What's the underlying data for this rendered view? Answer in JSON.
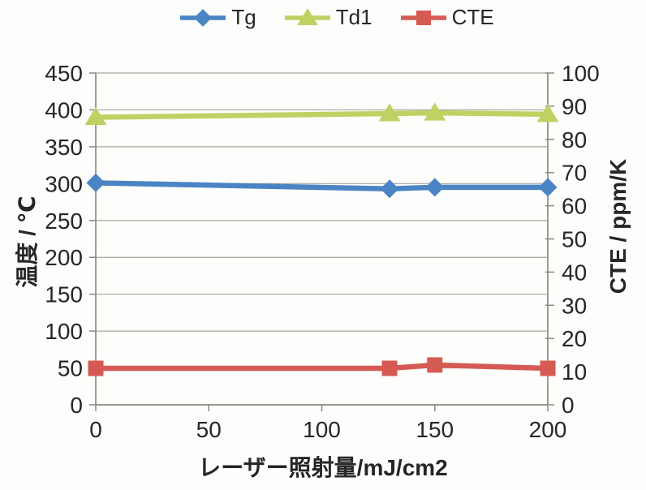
{
  "figure": {
    "background": "#fdfdfb"
  },
  "chart_data": {
    "type": "line",
    "title": "",
    "x": [
      0,
      130,
      150,
      200
    ],
    "series": [
      {
        "name": "Tg",
        "axis": "left",
        "color": "#4a84c4",
        "marker": "diamond",
        "values": [
          301,
          293,
          295,
          295
        ]
      },
      {
        "name": "Td1",
        "axis": "left",
        "color": "#bed264",
        "marker": "triangle",
        "values": [
          390,
          395,
          396,
          394
        ]
      },
      {
        "name": "CTE",
        "axis": "right",
        "color": "#d65a54",
        "marker": "square",
        "values": [
          11,
          11,
          12,
          11
        ]
      }
    ],
    "x_axis": {
      "label": "レーザー照射量/mJ/cm2",
      "min": 0,
      "max": 200,
      "tick_step": 50
    },
    "left_axis": {
      "label": "温度 / ℃",
      "min": 0,
      "max": 450,
      "tick_step": 50
    },
    "right_axis": {
      "label": "CTE / ppm/K",
      "min": 0,
      "max": 100,
      "tick_step": 10
    },
    "legend": {
      "position": "top",
      "entries": [
        "Tg",
        "Td1",
        "CTE"
      ]
    },
    "grid": "horizontal-only",
    "colors": {
      "gridline": "#a8a6a0",
      "axis_line": "#8c8a84",
      "text": "#262624"
    }
  }
}
